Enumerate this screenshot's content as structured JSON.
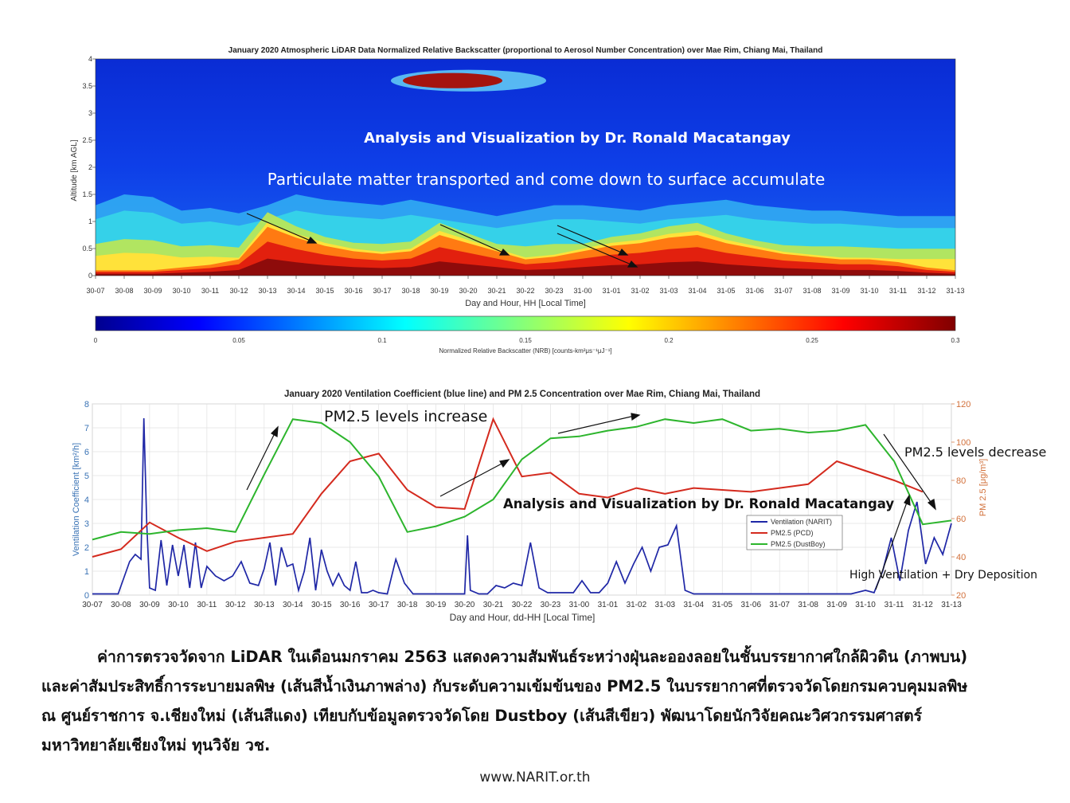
{
  "lidar": {
    "title": "January 2020 Atmospheric LiDAR Data Normalized Relative Backscatter (proportional to Aerosol Number Concentration) over Mae Rim, Chiang Mai, Thailand",
    "annotation_1": "Analysis and Visualization by Dr. Ronald Macatangay",
    "annotation_2": "Particulate matter transported and come down to surface accumulate",
    "ylabel": "Altitude [km AGL]",
    "xlabel": "Day and Hour, HH [Local Time]",
    "colorbar_label": "Normalized Relative Backscatter (NRB) [counts-km²μs⁻¹μJ⁻¹]"
  },
  "vent": {
    "title": "January 2020 Ventilation Coefficient (blue line) and PM 2.5 Concentration over Mae Rim, Chiang Mai, Thailand",
    "ylabel_left": "Ventilation Coefficient [km²/h]",
    "ylabel_right": "PM 2.5 [μg/m³]",
    "xlabel": "Day and Hour, dd-HH [Local Time]",
    "annotation_increase": "PM2.5 levels increase",
    "annotation_decrease": "PM2.5 levels decrease",
    "annotation_credit": "Analysis and Visualization by Dr. Ronald Macatangay",
    "annotation_ventilation": "High Ventilation + Dry Deposition"
  },
  "caption": {
    "line1": "ค่าการตรวจวัดจาก LiDAR ในเดือนมกราคม 2563 แสดงความสัมพันธ์ระหว่างฝุ่นละอองลอยในชั้นบรรยากาศใกล้ผิวดิน (ภาพบน)",
    "line2": "และค่าสัมประสิทธิ์การระบายมลพิษ (เส้นสีน้ำเงินภาพล่าง) กับระดับความเข้มข้นของ PM2.5 ในบรรยากาศที่ตรวจวัดโดยกรมควบคุมมลพิษ",
    "line3": "ณ ศูนย์ราชการ จ.เชียงใหม่ (เส้นสีแดง) เทียบกับข้อมูลตรวจวัดโดย Dustboy (เส้นสีเขียว) พัฒนาโดยนักวิจัยคณะวิศวกรรมศาสตร์",
    "line4": "มหาวิทยาลัยเชียงใหม่ ทุนวิจัย วช."
  },
  "footer": {
    "url": "www.NARIT.or.th"
  },
  "chart_data": [
    {
      "type": "heatmap",
      "title": "January 2020 Atmospheric LiDAR Data Normalized Relative Backscatter (proportional to Aerosol Number Concentration) over Mae Rim, Chiang Mai, Thailand",
      "xlabel": "Day and Hour, HH [Local Time]",
      "ylabel": "Altitude [km AGL]",
      "x_ticks": [
        "30-07",
        "30-08",
        "30-09",
        "30-10",
        "30-11",
        "30-12",
        "30-13",
        "30-14",
        "30-15",
        "30-16",
        "30-17",
        "30-18",
        "30-19",
        "30-20",
        "30-21",
        "30-22",
        "30-23",
        "31-00",
        "31-01",
        "31-02",
        "31-03",
        "31-04",
        "31-05",
        "31-06",
        "31-07",
        "31-08",
        "31-09",
        "31-10",
        "31-11",
        "31-12",
        "31-13"
      ],
      "y_ticks": [
        0,
        0.5,
        1,
        1.5,
        2,
        2.5,
        3,
        3.5,
        4
      ],
      "ylim": [
        0,
        4
      ],
      "colorbar": {
        "label": "Normalized Relative Backscatter (NRB) [counts-km²μs⁻¹μJ⁻¹]",
        "range": [
          0,
          0.3
        ],
        "ticks": [
          0,
          0.05,
          0.1,
          0.15,
          0.2,
          0.25,
          0.3
        ],
        "colormap": "jet"
      },
      "layer_top_km": [
        1.3,
        1.5,
        1.45,
        1.2,
        1.25,
        1.15,
        1.3,
        1.5,
        1.4,
        1.35,
        1.3,
        1.4,
        1.3,
        1.2,
        1.1,
        1.2,
        1.3,
        1.3,
        1.25,
        1.2,
        1.3,
        1.35,
        1.4,
        1.3,
        1.25,
        1.2,
        1.2,
        1.15,
        1.1,
        1.1,
        1.1
      ],
      "high_concentration_top_km": [
        0.1,
        0.1,
        0.1,
        0.15,
        0.2,
        0.3,
        0.9,
        0.7,
        0.55,
        0.45,
        0.4,
        0.45,
        0.75,
        0.6,
        0.45,
        0.3,
        0.35,
        0.45,
        0.55,
        0.6,
        0.7,
        0.75,
        0.6,
        0.5,
        0.4,
        0.35,
        0.3,
        0.3,
        0.25,
        0.15,
        0.1
      ],
      "elevated_layer": {
        "x_range": [
          "30-18",
          "30-23"
        ],
        "altitude_km": [
          3.4,
          3.8
        ]
      }
    },
    {
      "type": "line",
      "title": "January 2020 Ventilation Coefficient (blue line) and PM 2.5 Concentration over Mae Rim, Chiang Mai, Thailand",
      "xlabel": "Day and Hour, dd-HH [Local Time]",
      "ylabel": "Ventilation Coefficient [km²/h]",
      "ylabel_right": "PM 2.5 [μg/m³]",
      "categories": [
        "30-07",
        "30-08",
        "30-09",
        "30-10",
        "30-11",
        "30-12",
        "30-13",
        "30-14",
        "30-15",
        "30-16",
        "30-17",
        "30-18",
        "30-19",
        "30-20",
        "30-21",
        "30-22",
        "30-23",
        "31-00",
        "31-01",
        "31-02",
        "31-03",
        "31-04",
        "31-05",
        "31-06",
        "31-07",
        "31-08",
        "31-09",
        "31-10",
        "31-11",
        "31-12",
        "31-13"
      ],
      "ylim": [
        0,
        8
      ],
      "ylim_right": [
        20,
        120
      ],
      "y_ticks": [
        0,
        1,
        2,
        3,
        4,
        5,
        6,
        7,
        8
      ],
      "y_ticks_right": [
        20,
        40,
        60,
        80,
        100,
        120
      ],
      "legend_position": "lower-right",
      "series": [
        {
          "name": "PM2.5 (PCD)",
          "axis": "right",
          "color": "#d42a1e",
          "x": [
            0,
            1,
            2,
            3,
            4,
            5,
            6,
            7,
            8,
            9,
            10,
            11,
            12,
            13,
            14,
            15,
            16,
            17,
            18,
            19,
            20,
            21,
            22,
            23,
            24,
            25,
            26,
            27,
            28,
            29
          ],
          "values": [
            40,
            44,
            58,
            50,
            43,
            48,
            50,
            52,
            73,
            90,
            94,
            75,
            66,
            65,
            112,
            82,
            84,
            73,
            71,
            76,
            73,
            76,
            75,
            74,
            76,
            78,
            90,
            85,
            80,
            74
          ]
        },
        {
          "name": "PM2.5 (DustBoy)",
          "axis": "right",
          "color": "#2db52d",
          "x": [
            0,
            1,
            2,
            3,
            4,
            5,
            6,
            7,
            8,
            9,
            10,
            11,
            12,
            13,
            14,
            15,
            16,
            17,
            18,
            19,
            20,
            21,
            22,
            23,
            24,
            25,
            26,
            27,
            28,
            29,
            30
          ],
          "values": [
            49,
            53,
            52,
            54,
            55,
            53,
            83,
            112,
            110,
            100,
            82,
            53,
            56,
            61,
            70,
            91,
            102,
            103,
            106,
            108,
            112,
            110,
            112,
            106,
            107,
            105,
            106,
            109,
            90,
            57,
            59
          ]
        },
        {
          "name": "Ventilation (NARIT)",
          "axis": "left",
          "color": "#1f27a6",
          "x": [
            0.0,
            0.5,
            0.9,
            1.3,
            1.5,
            1.7,
            1.8,
            1.9,
            2.0,
            2.2,
            2.4,
            2.6,
            2.8,
            3.0,
            3.2,
            3.4,
            3.6,
            3.8,
            4.0,
            4.3,
            4.6,
            4.9,
            5.2,
            5.5,
            5.8,
            6.0,
            6.2,
            6.4,
            6.6,
            6.8,
            7.0,
            7.2,
            7.4,
            7.6,
            7.8,
            8.0,
            8.2,
            8.4,
            8.6,
            8.8,
            9.0,
            9.2,
            9.4,
            9.6,
            9.8,
            10.0,
            10.3,
            10.6,
            10.9,
            11.2,
            11.5,
            11.9,
            12.3,
            12.7,
            13.0,
            13.1,
            13.2,
            13.5,
            13.8,
            14.1,
            14.4,
            14.7,
            15.0,
            15.3,
            15.6,
            15.9,
            16.2,
            16.5,
            16.8,
            17.1,
            17.4,
            17.7,
            18.0,
            18.3,
            18.6,
            18.9,
            19.2,
            19.5,
            19.8,
            20.1,
            20.4,
            20.7,
            21.0,
            21.5,
            22.0,
            22.5,
            23.0,
            23.5,
            24.0,
            24.5,
            25.0,
            25.5,
            26.0,
            26.5,
            27.0,
            27.3,
            27.6,
            27.9,
            28.2,
            28.5,
            28.8,
            29.1,
            29.4,
            29.7,
            30.0
          ],
          "values": [
            0.05,
            0.05,
            0.05,
            1.4,
            1.7,
            1.5,
            7.4,
            3.0,
            0.3,
            0.2,
            2.3,
            0.4,
            2.1,
            0.8,
            2.1,
            0.3,
            2.2,
            0.3,
            1.2,
            0.8,
            0.6,
            0.8,
            1.4,
            0.5,
            0.4,
            1.1,
            2.2,
            0.4,
            2.0,
            1.2,
            1.3,
            0.2,
            1.0,
            2.4,
            0.2,
            1.9,
            1.0,
            0.4,
            0.9,
            0.4,
            0.2,
            1.4,
            0.1,
            0.1,
            0.2,
            0.1,
            0.05,
            1.5,
            0.5,
            0.05,
            0.05,
            0.05,
            0.05,
            0.05,
            0.05,
            2.5,
            0.2,
            0.05,
            0.05,
            0.4,
            0.3,
            0.5,
            0.4,
            2.2,
            0.3,
            0.1,
            0.1,
            0.1,
            0.1,
            0.6,
            0.1,
            0.1,
            0.5,
            1.4,
            0.5,
            1.3,
            2.0,
            1.0,
            2.0,
            2.1,
            2.9,
            0.2,
            0.05,
            0.05,
            0.05,
            0.05,
            0.05,
            0.05,
            0.05,
            0.05,
            0.05,
            0.05,
            0.05,
            0.05,
            0.2,
            0.1,
            1.0,
            2.4,
            0.6,
            2.7,
            3.9,
            1.3,
            2.4,
            1.7,
            3.0
          ]
        }
      ]
    }
  ]
}
